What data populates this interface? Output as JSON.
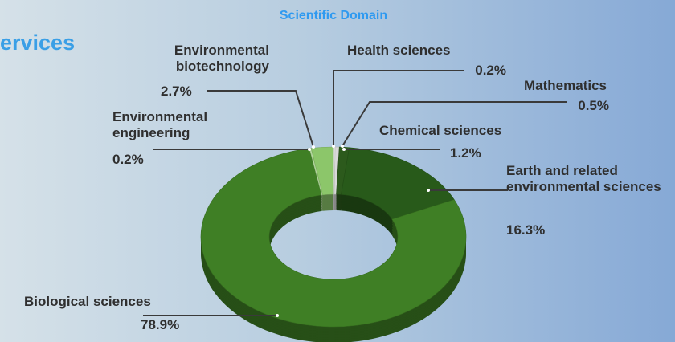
{
  "page_heading": "ervices",
  "chart_data": {
    "type": "donut",
    "title": "Scientific Domain",
    "categories": [
      "Health sciences",
      "Mathematics",
      "Chemical sciences",
      "Earth and related environmental sciences",
      "Biological sciences",
      "Environmental engineering",
      "Environmental biotechnology"
    ],
    "values": [
      0.2,
      0.5,
      1.2,
      16.3,
      78.9,
      0.2,
      2.7
    ],
    "value_labels": [
      "0.2%",
      "0.5%",
      "1.2%",
      "16.3%",
      "78.9%",
      "0.2%",
      "2.7%"
    ],
    "colors": [
      "#ececec",
      "#d9d9d9",
      "#2c5a1c",
      "#285a1a",
      "#3f7f25",
      "#b6dba0",
      "#8cc66a"
    ]
  }
}
